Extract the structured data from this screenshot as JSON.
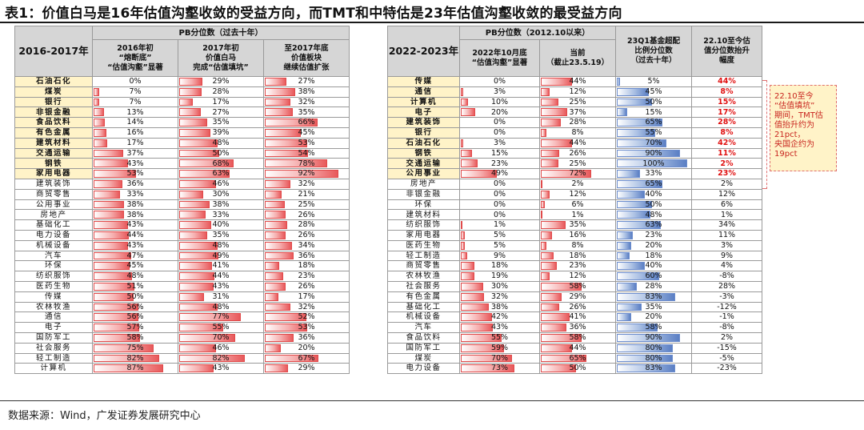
{
  "title": "表1：价值白马是16年估值沟壑收敛的受益方向，而TMT和中特估是23年估值沟壑收敛的最受益方向",
  "source": "数据来源：Wind，广发证券发展研究中心",
  "left": {
    "corner": "2016-2017年",
    "group_header": "PB分位数（过去十年）",
    "col_headers": [
      "2016年初\n“熔断底”\n“估值沟壑”显著",
      "2017年初\n价值白马\n完成“估值填坑”",
      "至2017年底\n价值板块\n继续估值扩张"
    ],
    "rows": [
      {
        "name": "石油石化",
        "top": true,
        "v1": 0,
        "v2": 29,
        "v3": 27
      },
      {
        "name": "煤炭",
        "top": true,
        "v1": 7,
        "v2": 28,
        "v3": 38
      },
      {
        "name": "银行",
        "top": true,
        "v1": 7,
        "v2": 17,
        "v3": 32
      },
      {
        "name": "非银金融",
        "top": true,
        "v1": 13,
        "v2": 27,
        "v3": 35
      },
      {
        "name": "食品饮料",
        "top": true,
        "v1": 14,
        "v2": 35,
        "v3": 66
      },
      {
        "name": "有色金属",
        "top": true,
        "v1": 16,
        "v2": 39,
        "v3": 45
      },
      {
        "name": "建筑材料",
        "top": true,
        "v1": 17,
        "v2": 48,
        "v3": 53
      },
      {
        "name": "交通运输",
        "top": true,
        "v1": 37,
        "v2": 50,
        "v3": 54
      },
      {
        "name": "钢铁",
        "top": true,
        "v1": 43,
        "v2": 68,
        "v3": 78
      },
      {
        "name": "家用电器",
        "top": true,
        "v1": 53,
        "v2": 63,
        "v3": 92
      },
      {
        "name": "建筑装饰",
        "top": false,
        "v1": 36,
        "v2": 46,
        "v3": 32
      },
      {
        "name": "商贸零售",
        "top": false,
        "v1": 33,
        "v2": 30,
        "v3": 21
      },
      {
        "name": "公用事业",
        "top": false,
        "v1": 38,
        "v2": 38,
        "v3": 25
      },
      {
        "name": "房地产",
        "top": false,
        "v1": 38,
        "v2": 33,
        "v3": 26
      },
      {
        "name": "基础化工",
        "top": false,
        "v1": 43,
        "v2": 40,
        "v3": 28
      },
      {
        "name": "电力设备",
        "top": false,
        "v1": 44,
        "v2": 35,
        "v3": 26
      },
      {
        "name": "机械设备",
        "top": false,
        "v1": 43,
        "v2": 48,
        "v3": 34
      },
      {
        "name": "汽车",
        "top": false,
        "v1": 47,
        "v2": 49,
        "v3": 36
      },
      {
        "name": "环保",
        "top": false,
        "v1": 45,
        "v2": 41,
        "v3": 18
      },
      {
        "name": "纺织服饰",
        "top": false,
        "v1": 48,
        "v2": 44,
        "v3": 23
      },
      {
        "name": "医药生物",
        "top": false,
        "v1": 51,
        "v2": 43,
        "v3": 26
      },
      {
        "name": "传媒",
        "top": false,
        "v1": 50,
        "v2": 31,
        "v3": 17
      },
      {
        "name": "农林牧渔",
        "top": false,
        "v1": 56,
        "v2": 48,
        "v3": 32
      },
      {
        "name": "通信",
        "top": false,
        "v1": 56,
        "v2": 77,
        "v3": 52
      },
      {
        "name": "电子",
        "top": false,
        "v1": 57,
        "v2": 55,
        "v3": 53
      },
      {
        "name": "国防军工",
        "top": false,
        "v1": 58,
        "v2": 70,
        "v3": 36
      },
      {
        "name": "社会服务",
        "top": false,
        "v1": 75,
        "v2": 46,
        "v3": 20
      },
      {
        "name": "轻工制造",
        "top": false,
        "v1": 82,
        "v2": 82,
        "v3": 67
      },
      {
        "name": "计算机",
        "top": false,
        "v1": 87,
        "v2": 43,
        "v3": 29
      }
    ]
  },
  "right": {
    "corner": "2022-2023年",
    "group_header": "PB分位数（2012.10以来）",
    "col_headers": [
      "2022年10月底\n“估值沟壑”显著",
      "当前\n（截止23.5.19）",
      "23Q1基金超配\n比例分位数\n（过去十年）",
      "22.10至今估\n值分位数抬升\n幅度"
    ],
    "rows": [
      {
        "name": "传媒",
        "top": true,
        "v1": 0,
        "v2": 44,
        "v3": 5,
        "v4": "44%"
      },
      {
        "name": "通信",
        "top": true,
        "v1": 3,
        "v2": 12,
        "v3": 45,
        "v4": "8%"
      },
      {
        "name": "计算机",
        "top": true,
        "v1": 10,
        "v2": 25,
        "v3": 50,
        "v4": "15%"
      },
      {
        "name": "电子",
        "top": true,
        "v1": 20,
        "v2": 37,
        "v3": 15,
        "v4": "17%"
      },
      {
        "name": "建筑装饰",
        "top": true,
        "v1": 0,
        "v2": 28,
        "v3": 65,
        "v4": "28%"
      },
      {
        "name": "银行",
        "top": true,
        "v1": 0,
        "v2": 8,
        "v3": 55,
        "v4": "8%"
      },
      {
        "name": "石油石化",
        "top": true,
        "v1": 3,
        "v2": 44,
        "v3": 70,
        "v4": "42%"
      },
      {
        "name": "钢铁",
        "top": true,
        "v1": 15,
        "v2": 26,
        "v3": 90,
        "v4": "11%"
      },
      {
        "name": "交通运输",
        "top": true,
        "v1": 23,
        "v2": 25,
        "v3": 100,
        "v4": "2%"
      },
      {
        "name": "公用事业",
        "top": true,
        "v1": 49,
        "v2": 72,
        "v3": 33,
        "v4": "23%"
      },
      {
        "name": "房地产",
        "top": false,
        "v1": 0,
        "v2": 2,
        "v3": 65,
        "v4": "2%"
      },
      {
        "name": "非银金融",
        "top": false,
        "v1": 0,
        "v2": 12,
        "v3": 40,
        "v4": "12%"
      },
      {
        "name": "环保",
        "top": false,
        "v1": 0,
        "v2": 6,
        "v3": 50,
        "v4": "6%"
      },
      {
        "name": "建筑材料",
        "top": false,
        "v1": 0,
        "v2": 1,
        "v3": 48,
        "v4": "1%"
      },
      {
        "name": "纺织服饰",
        "top": false,
        "v1": 1,
        "v2": 35,
        "v3": 63,
        "v4": "34%"
      },
      {
        "name": "家用电器",
        "top": false,
        "v1": 5,
        "v2": 16,
        "v3": 23,
        "v4": "11%"
      },
      {
        "name": "医药生物",
        "top": false,
        "v1": 5,
        "v2": 8,
        "v3": 20,
        "v4": "3%"
      },
      {
        "name": "轻工制造",
        "top": false,
        "v1": 9,
        "v2": 18,
        "v3": 18,
        "v4": "9%"
      },
      {
        "name": "商贸零售",
        "top": false,
        "v1": 18,
        "v2": 23,
        "v3": 40,
        "v4": "4%"
      },
      {
        "name": "农林牧渔",
        "top": false,
        "v1": 19,
        "v2": 12,
        "v3": 60,
        "v4": "-8%"
      },
      {
        "name": "社会服务",
        "top": false,
        "v1": 30,
        "v2": 58,
        "v3": 28,
        "v4": "28%"
      },
      {
        "name": "有色金属",
        "top": false,
        "v1": 32,
        "v2": 29,
        "v3": 83,
        "v4": "-3%"
      },
      {
        "name": "基础化工",
        "top": false,
        "v1": 38,
        "v2": 26,
        "v3": 35,
        "v4": "-12%"
      },
      {
        "name": "机械设备",
        "top": false,
        "v1": 42,
        "v2": 41,
        "v3": 20,
        "v4": "-1%"
      },
      {
        "name": "汽车",
        "top": false,
        "v1": 43,
        "v2": 36,
        "v3": 58,
        "v4": "-8%"
      },
      {
        "name": "食品饮料",
        "top": false,
        "v1": 55,
        "v2": 58,
        "v3": 90,
        "v4": "2%"
      },
      {
        "name": "国防军工",
        "top": false,
        "v1": 59,
        "v2": 44,
        "v3": 80,
        "v4": "-15%"
      },
      {
        "name": "煤炭",
        "top": false,
        "v1": 70,
        "v2": 65,
        "v3": 80,
        "v4": "-5%"
      },
      {
        "name": "电力设备",
        "top": false,
        "v1": 73,
        "v2": 50,
        "v3": 83,
        "v4": "-23%"
      }
    ]
  },
  "callout": "22.10至今\n“估值填坑”\n期间，TMT估\n值抬升约为\n21pct，\n央国企约为\n19pct",
  "colors": {
    "red_bar": "#e8595b",
    "blue_bar": "#5b7fc4",
    "highlight_text": "#e01010",
    "top_row_bg": "#fff3c8",
    "header_bg": "#d6d6d6"
  }
}
